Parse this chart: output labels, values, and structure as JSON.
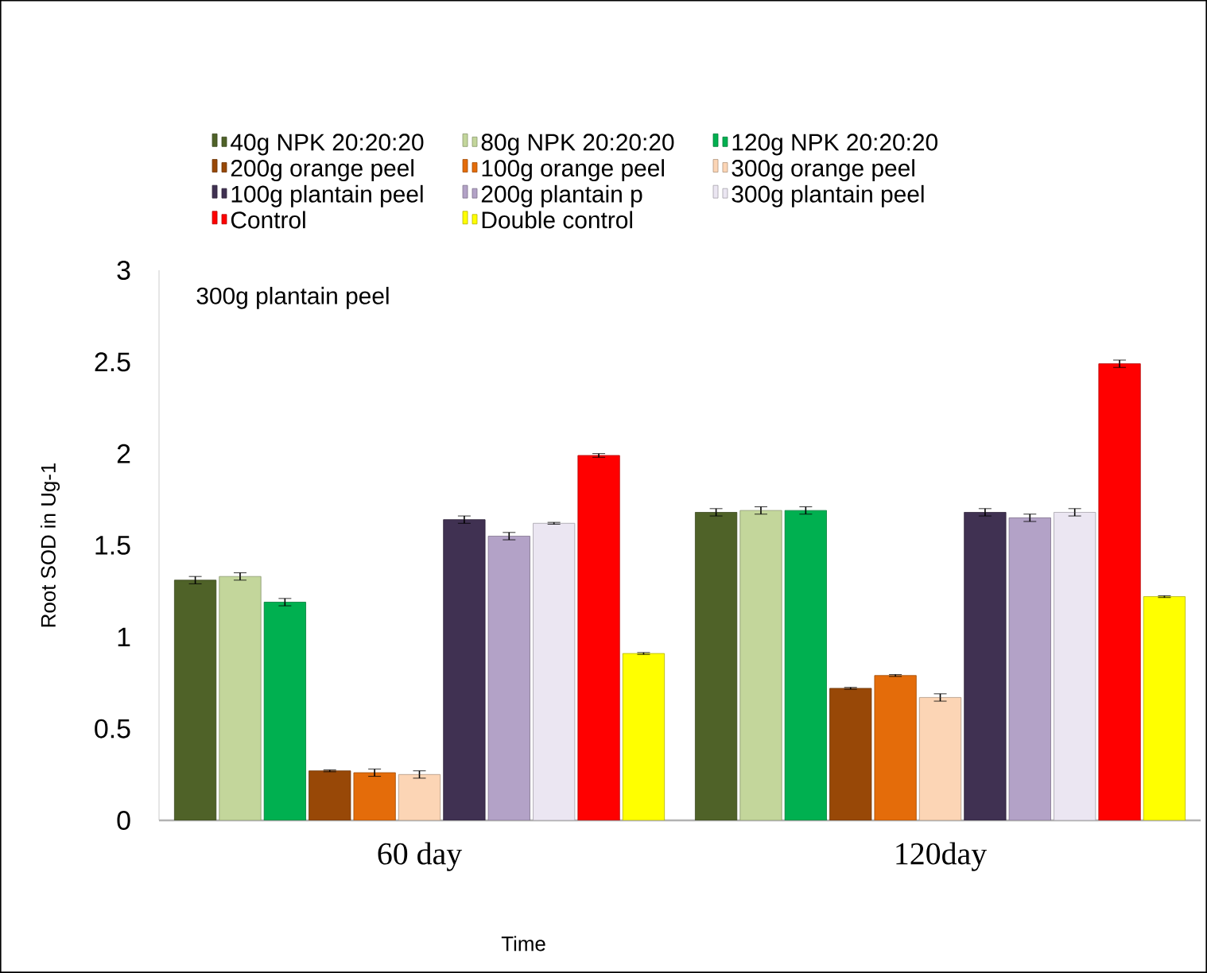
{
  "chart_data": {
    "type": "bar",
    "xlabel": "Time",
    "ylabel": "Root SOD in Ug-1",
    "categories": [
      "60 day",
      "120day"
    ],
    "ylim": [
      0,
      3
    ],
    "yticks": [
      0,
      0.5,
      1,
      1.5,
      2,
      2.5,
      3
    ],
    "legend": "top",
    "annotations": [
      "300g plantain peel"
    ],
    "series": [
      {
        "name": "40g NPK 20:20:20",
        "color": "#4f6228",
        "values": [
          1.31,
          1.68
        ],
        "errors": [
          0.02,
          0.02
        ]
      },
      {
        "name": "80g NPK 20:20:20",
        "color": "#c3d69b",
        "values": [
          1.33,
          1.69
        ],
        "errors": [
          0.02,
          0.02
        ]
      },
      {
        "name": "120g NPK 20:20:20",
        "color": "#00b050",
        "values": [
          1.19,
          1.69
        ],
        "errors": [
          0.02,
          0.02
        ]
      },
      {
        "name": "200g orange peel",
        "color": "#984807",
        "values": [
          0.27,
          0.72
        ],
        "errors": [
          0.005,
          0.005
        ]
      },
      {
        "name": "100g orange peel",
        "color": "#e46c0a",
        "values": [
          0.26,
          0.79
        ],
        "errors": [
          0.02,
          0.005
        ]
      },
      {
        "name": "300g orange peel",
        "color": "#fcd5b5",
        "values": [
          0.25,
          0.67
        ],
        "errors": [
          0.02,
          0.02
        ]
      },
      {
        "name": "100g plantain peel",
        "color": "#403152",
        "values": [
          1.64,
          1.68
        ],
        "errors": [
          0.02,
          0.02
        ]
      },
      {
        "name": "200g plantain p",
        "color": "#b3a2c7",
        "values": [
          1.55,
          1.65
        ],
        "errors": [
          0.02,
          0.02
        ]
      },
      {
        "name": "300g plantain peel",
        "color": "#ebe6f2",
        "values": [
          1.62,
          1.68
        ],
        "errors": [
          0.005,
          0.02
        ]
      },
      {
        "name": "Control",
        "color": "#ff0000",
        "values": [
          1.99,
          2.49
        ],
        "errors": [
          0.01,
          0.02
        ]
      },
      {
        "name": "Double control",
        "color": "#ffff00",
        "values": [
          0.91,
          1.22
        ],
        "errors": [
          0.005,
          0.005
        ]
      }
    ]
  }
}
